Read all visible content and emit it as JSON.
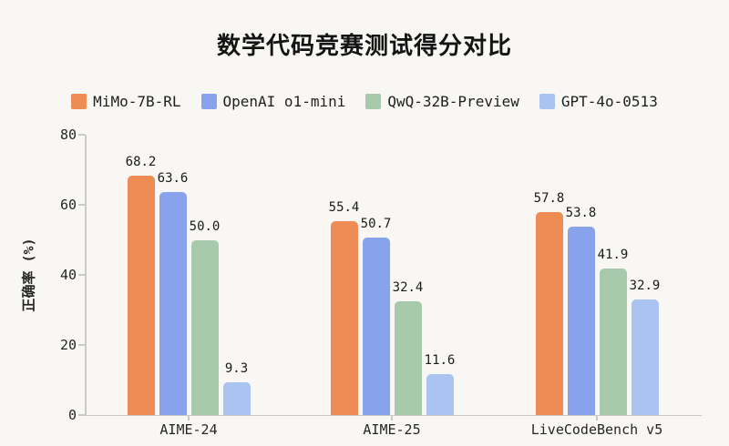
{
  "chart_data": {
    "type": "bar",
    "title": "数学代码竞赛测试得分对比",
    "ylabel": "正确率 (%)",
    "xlabel": "",
    "ylim": [
      0,
      80
    ],
    "yticks": [
      0,
      20,
      40,
      60,
      80
    ],
    "grid": false,
    "legend_position": "top",
    "value_labels": "one decimal above each bar",
    "categories": [
      "AIME-24",
      "AIME-25",
      "LiveCodeBench v5"
    ],
    "series": [
      {
        "name": "MiMo-7B-RL",
        "color": "#ED8C55",
        "values": [
          68.2,
          55.4,
          57.8
        ]
      },
      {
        "name": "OpenAI o1-mini",
        "color": "#88A3EC",
        "values": [
          63.6,
          50.7,
          53.8
        ]
      },
      {
        "name": "QwQ-32B-Preview",
        "color": "#A7C9AC",
        "values": [
          50.0,
          32.4,
          41.9
        ]
      },
      {
        "name": "GPT-4o-0513",
        "color": "#AAC3F1",
        "values": [
          9.3,
          11.6,
          32.9
        ]
      }
    ],
    "colors": {
      "background": "#F8F7F4",
      "axis_line": "#C9C9C9",
      "text": "#262626"
    }
  }
}
